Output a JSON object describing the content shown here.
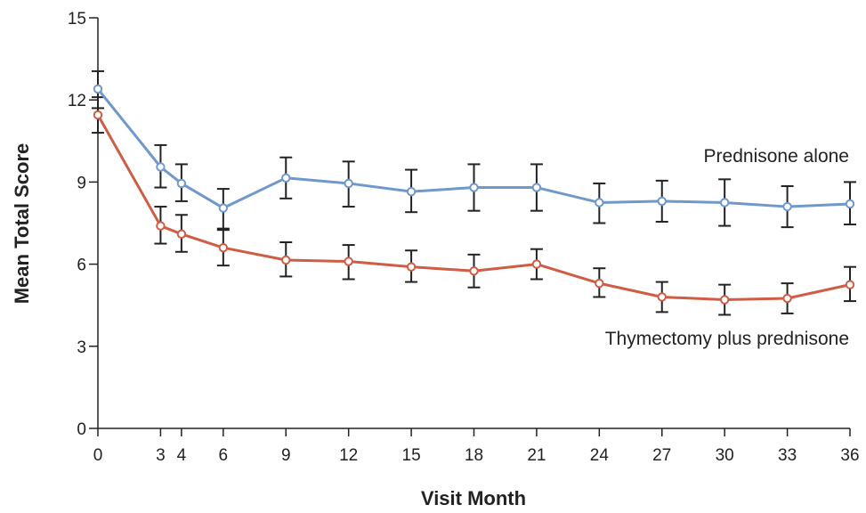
{
  "chart_data": {
    "type": "line",
    "title": "",
    "xlabel": "Visit Month",
    "ylabel": "Mean Total Score",
    "xlim": [
      0,
      36
    ],
    "ylim": [
      0,
      15
    ],
    "x_ticks": [
      0,
      3,
      4,
      6,
      9,
      12,
      15,
      18,
      21,
      24,
      27,
      30,
      33,
      36
    ],
    "y_ticks": [
      0,
      3,
      6,
      9,
      12,
      15
    ],
    "grid": false,
    "legend": "inline labels",
    "x": [
      0,
      3,
      4,
      6,
      9,
      12,
      15,
      18,
      21,
      24,
      27,
      30,
      33,
      36
    ],
    "series": [
      {
        "name": "Prednisone alone",
        "color": "#6f98cc",
        "values": [
          12.4,
          9.55,
          8.95,
          8.05,
          9.15,
          8.95,
          8.65,
          8.8,
          8.8,
          8.25,
          8.3,
          8.25,
          8.1,
          8.2
        ],
        "err_low": [
          11.7,
          8.8,
          8.3,
          7.3,
          8.4,
          8.1,
          7.9,
          7.95,
          7.95,
          7.5,
          7.55,
          7.4,
          7.35,
          7.45
        ],
        "err_high": [
          13.05,
          10.35,
          9.65,
          8.75,
          9.9,
          9.75,
          9.45,
          9.65,
          9.65,
          8.95,
          9.05,
          9.1,
          8.85,
          9.0
        ]
      },
      {
        "name": "Thymectomy plus prednisone",
        "color": "#cf5c45",
        "values": [
          11.45,
          7.4,
          7.1,
          6.6,
          6.15,
          6.1,
          5.9,
          5.75,
          6.0,
          5.3,
          4.8,
          4.7,
          4.75,
          5.25
        ],
        "err_low": [
          10.8,
          6.75,
          6.45,
          5.95,
          5.55,
          5.45,
          5.35,
          5.15,
          5.45,
          4.8,
          4.25,
          4.15,
          4.2,
          4.65
        ],
        "err_high": [
          12.1,
          8.1,
          7.8,
          7.25,
          6.8,
          6.7,
          6.5,
          6.35,
          6.55,
          5.85,
          5.35,
          5.25,
          5.3,
          5.9
        ]
      }
    ]
  }
}
